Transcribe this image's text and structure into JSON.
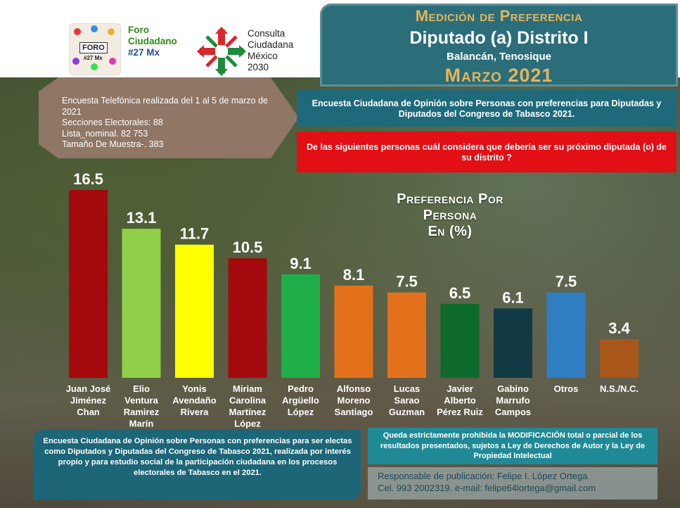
{
  "logos": {
    "foro_badge": "FORO",
    "foro_badge_tag": "#27 Mx",
    "foro_title": [
      "Foro",
      "Ciudadano",
      "#27 Mx"
    ],
    "consulta_title": [
      "Consulta",
      "Ciudadana",
      "México",
      "2030"
    ]
  },
  "header": {
    "line1": "Medición de Preferencia",
    "line2": "Diputado (a) Distrito I",
    "line3": "Balancán, Tenosique",
    "line4": "Marzo 2021"
  },
  "survey_info": [
    "Encuesta Telefónica realizada del 1 al 5 de marzo de 2021",
    "Secciones Electorales: 88",
    "Lista_nominal. 82 753",
    "Tamaño De Muestra-. 383"
  ],
  "survey_title": "Encuesta Ciudadana de Opinión sobre Personas con preferencias para Diputadas y Diputados  del Congreso de Tabasco 2021.",
  "question": "De las siguientes personas cuál considera que debería ser su próximo diputada (o) de su distrito ?",
  "chart_data": {
    "type": "bar",
    "title": [
      "Preferencia Por",
      "Persona",
      "En (%)"
    ],
    "categories": [
      "Juan José Jiménez Chan",
      "Elio Ventura Ramirez Marín",
      "Yonis Avendaño Rivera",
      "Miriam Carolina Martínez López",
      "Pedro Argüello López",
      "Alfonso Moreno Santiago",
      "Lucas Sarao Guzman",
      "Javier Alberto Pérez Ruiz",
      "Gabino Marrufo Campos",
      "Otros",
      "N.S./N.C."
    ],
    "category_lines": [
      [
        "Juan José",
        "Jiménez",
        "Chan"
      ],
      [
        "Elio",
        "Ventura",
        "Ramirez",
        "Marín"
      ],
      [
        "Yonis",
        "Avendaño",
        "Rivera"
      ],
      [
        "Miriam",
        "Carolina",
        "Martínez",
        "López"
      ],
      [
        "Pedro",
        "Argüello",
        "López"
      ],
      [
        "Alfonso",
        "Moreno",
        "Santiago"
      ],
      [
        "Lucas",
        "Sarao",
        "Guzman"
      ],
      [
        "Javier",
        "Alberto",
        "Pérez Ruiz"
      ],
      [
        "Gabino",
        "Marrufo",
        "Campos"
      ],
      [
        "Otros"
      ],
      [
        "N.S./N.C."
      ]
    ],
    "values": [
      16.5,
      13.1,
      11.7,
      10.5,
      9.1,
      8.1,
      7.5,
      6.5,
      6.1,
      7.5,
      3.4
    ],
    "value_labels": [
      "16.5",
      "13.1",
      "11.7",
      "10.5",
      "9.1",
      "8.1",
      "7.5",
      "6.5",
      "6.1",
      "7.5",
      "3.4"
    ],
    "colors": [
      "#a3090d",
      "#8fcf4a",
      "#ffff00",
      "#a3090d",
      "#1fae4a",
      "#e3711c",
      "#e3711c",
      "#0e6a2c",
      "#123a44",
      "#2f7ec4",
      "#a8561a"
    ],
    "ylim": [
      0,
      17
    ]
  },
  "footer_left": "Encuesta Ciudadana de Opinión sobre Personas con preferencias para ser electas como Diputados y Diputadas  del Congreso de Tabasco 2021, realizada por interés propio y para estudio social de la participación ciudadana en los procesos electorales de Tabasco en el 2021.",
  "footer_right": "Queda estrictamente prohibida la MODIFICACIÓN  total o parcial de los resultados presentados, sujetos a Ley de Derechos de Autor y la Ley de Propiedad Intelectual",
  "responsible": {
    "line1": "Responsable de publicación: Felipe I. López Ortega",
    "line2": "Cel. 993 2002319. e-mail: felipe64lortega@gmail.com"
  },
  "theme": {
    "header_bg": "#2b6e7a",
    "accent_gold": "#e6b45a",
    "question_red": "#e20f15"
  }
}
